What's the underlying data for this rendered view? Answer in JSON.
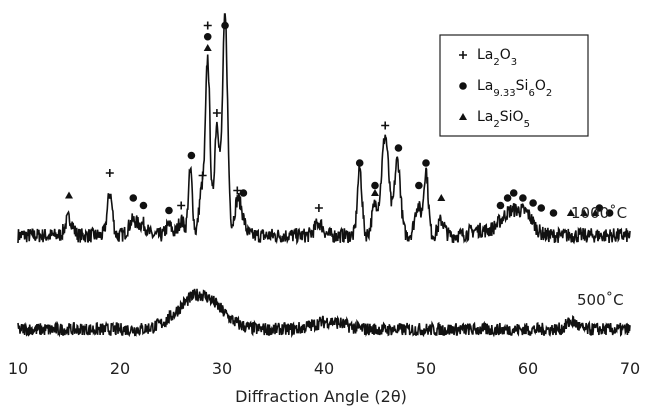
{
  "chart_data": {
    "type": "line",
    "title": "",
    "xlabel": "Diffraction Angle (2θ)",
    "ylabel": "",
    "xlim": [
      10,
      70
    ],
    "x_ticks": [
      10,
      20,
      30,
      40,
      50,
      60,
      70
    ],
    "grid": false,
    "legend_position": "top-right",
    "legend": [
      {
        "marker": "plus",
        "parts": [
          [
            "La",
            ""
          ],
          [
            "2",
            "sub"
          ],
          [
            "O",
            ""
          ],
          [
            "3",
            "sub"
          ]
        ]
      },
      {
        "marker": "circle",
        "parts": [
          [
            "La",
            ""
          ],
          [
            "9.33",
            "sub"
          ],
          [
            "Si",
            ""
          ],
          [
            "6",
            "sub"
          ],
          [
            "O",
            ""
          ],
          [
            "2",
            "sub"
          ]
        ]
      },
      {
        "marker": "triangle",
        "parts": [
          [
            "La",
            ""
          ],
          [
            "2",
            "sub"
          ],
          [
            "SiO",
            ""
          ],
          [
            "5",
            "sub"
          ]
        ]
      }
    ],
    "series": [
      {
        "name": "1000˚C",
        "color": "#111111",
        "baseline": 0.13,
        "noise": 0.03,
        "peaks": [
          [
            15.0,
            0.07,
            0.35
          ],
          [
            19.0,
            0.17,
            0.25
          ],
          [
            21.3,
            0.06,
            0.45
          ],
          [
            22.3,
            0.04,
            0.35
          ],
          [
            24.8,
            0.04,
            0.3
          ],
          [
            26.0,
            0.06,
            0.3
          ],
          [
            26.9,
            0.26,
            0.2
          ],
          [
            28.0,
            0.18,
            0.25
          ],
          [
            28.6,
            0.7,
            0.22
          ],
          [
            29.5,
            0.45,
            0.25
          ],
          [
            30.3,
            0.87,
            0.25
          ],
          [
            31.5,
            0.13,
            0.3
          ],
          [
            32.0,
            0.06,
            0.3
          ],
          [
            39.5,
            0.05,
            0.4
          ],
          [
            43.5,
            0.27,
            0.22
          ],
          [
            45.0,
            0.12,
            0.3
          ],
          [
            46.0,
            0.4,
            0.35
          ],
          [
            47.2,
            0.3,
            0.3
          ],
          [
            49.2,
            0.12,
            0.3
          ],
          [
            50.0,
            0.26,
            0.22
          ],
          [
            51.5,
            0.06,
            0.3
          ],
          [
            55.0,
            0.02,
            0.8
          ],
          [
            58.5,
            0.1,
            1.2
          ],
          [
            60.0,
            0.04,
            0.6
          ]
        ],
        "markers": [
          {
            "x": 15.0,
            "y": 0.29,
            "type": "triangle"
          },
          {
            "x": 19.0,
            "y": 0.38,
            "type": "plus"
          },
          {
            "x": 21.3,
            "y": 0.28,
            "type": "circle"
          },
          {
            "x": 22.3,
            "y": 0.25,
            "type": "circle"
          },
          {
            "x": 24.8,
            "y": 0.23,
            "type": "circle"
          },
          {
            "x": 26.0,
            "y": 0.25,
            "type": "plus"
          },
          {
            "x": 27.0,
            "y": 0.45,
            "type": "circle"
          },
          {
            "x": 28.1,
            "y": 0.37,
            "type": "plus"
          },
          {
            "x": 28.6,
            "y": 0.97,
            "type": "plus"
          },
          {
            "x": 28.6,
            "y": 0.925,
            "type": "circle"
          },
          {
            "x": 28.6,
            "y": 0.88,
            "type": "triangle"
          },
          {
            "x": 29.5,
            "y": 0.62,
            "type": "plus"
          },
          {
            "x": 30.3,
            "y": 0.97,
            "type": "circle"
          },
          {
            "x": 31.5,
            "y": 0.31,
            "type": "plus"
          },
          {
            "x": 32.1,
            "y": 0.3,
            "type": "circle"
          },
          {
            "x": 39.5,
            "y": 0.24,
            "type": "plus"
          },
          {
            "x": 43.5,
            "y": 0.42,
            "type": "circle"
          },
          {
            "x": 45.0,
            "y": 0.33,
            "type": "circle"
          },
          {
            "x": 45.0,
            "y": 0.3,
            "type": "triangle"
          },
          {
            "x": 46.0,
            "y": 0.57,
            "type": "plus"
          },
          {
            "x": 47.3,
            "y": 0.48,
            "type": "circle"
          },
          {
            "x": 49.3,
            "y": 0.33,
            "type": "circle"
          },
          {
            "x": 50.0,
            "y": 0.42,
            "type": "circle"
          },
          {
            "x": 51.5,
            "y": 0.28,
            "type": "triangle"
          },
          {
            "x": 57.3,
            "y": 0.25,
            "type": "circle"
          },
          {
            "x": 58.0,
            "y": 0.28,
            "type": "circle"
          },
          {
            "x": 58.6,
            "y": 0.3,
            "type": "circle"
          },
          {
            "x": 59.5,
            "y": 0.28,
            "type": "circle"
          },
          {
            "x": 60.5,
            "y": 0.26,
            "type": "circle"
          },
          {
            "x": 61.3,
            "y": 0.24,
            "type": "circle"
          },
          {
            "x": 62.5,
            "y": 0.22,
            "type": "circle"
          },
          {
            "x": 64.2,
            "y": 0.22,
            "type": "triangle"
          },
          {
            "x": 65.5,
            "y": 0.22,
            "type": "triangle"
          },
          {
            "x": 66.6,
            "y": 0.22,
            "type": "triangle"
          },
          {
            "x": 67.0,
            "y": 0.24,
            "type": "circle"
          },
          {
            "x": 68.0,
            "y": 0.22,
            "type": "circle"
          }
        ]
      },
      {
        "name": "500˚C",
        "color": "#111111",
        "baseline": 0.02,
        "noise": 0.025,
        "peaks": [
          [
            27.8,
            0.13,
            2.0
          ],
          [
            40.5,
            0.03,
            1.5
          ],
          [
            64.3,
            0.03,
            0.5
          ]
        ],
        "markers": []
      }
    ]
  }
}
